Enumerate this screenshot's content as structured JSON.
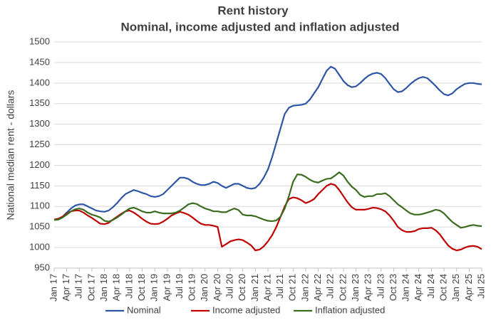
{
  "chart_data": {
    "type": "line",
    "title": "Rent history",
    "subtitle": "Nominal, income adjusted and inflation adjusted",
    "y_label": "National median rent - dollars",
    "categories": [
      "Jan 17",
      null,
      null,
      "Apr 17",
      null,
      null,
      "Jul 17",
      null,
      null,
      "Oct 17",
      null,
      null,
      "Jan 18",
      null,
      null,
      "Apr 18",
      null,
      null,
      "Jul 18",
      null,
      null,
      "Oct 18",
      null,
      null,
      "Jan 19",
      null,
      null,
      "Apr 19",
      null,
      null,
      "Jul 19",
      null,
      null,
      "Oct 19",
      null,
      null,
      "Jan 20",
      null,
      null,
      "Apr 20",
      null,
      null,
      "Jul 20",
      null,
      null,
      "Oct 20",
      null,
      null,
      "Jan 21",
      null,
      null,
      "Apr 21",
      null,
      null,
      "Jul 21",
      null,
      null,
      "Oct 21",
      null,
      null,
      "Jan 22",
      null,
      null,
      "Apr 22",
      null,
      null,
      "Jul 22",
      null,
      null,
      "Oct 22",
      null,
      null,
      "Jan 23",
      null,
      null,
      "Apr 23",
      null,
      null,
      "Jul 23",
      null,
      null,
      "Oct 23",
      null,
      null,
      "Jan 24",
      null,
      null,
      "Apr 24",
      null,
      null,
      "Jul 24",
      null,
      null,
      "Oct 24",
      null,
      null,
      "Jan 25",
      null,
      null,
      "Apr 25",
      null,
      null,
      "Jul 25"
    ],
    "series": [
      {
        "name": "Nominal",
        "color": "#2e55a5",
        "values": [
          1068,
          1070,
          1075,
          1085,
          1095,
          1102,
          1105,
          1105,
          1100,
          1095,
          1090,
          1088,
          1087,
          1090,
          1098,
          1108,
          1120,
          1130,
          1135,
          1140,
          1137,
          1133,
          1130,
          1125,
          1123,
          1125,
          1130,
          1140,
          1150,
          1160,
          1170,
          1170,
          1167,
          1160,
          1155,
          1152,
          1152,
          1155,
          1160,
          1157,
          1150,
          1145,
          1150,
          1155,
          1155,
          1150,
          1145,
          1143,
          1145,
          1155,
          1170,
          1190,
          1220,
          1255,
          1290,
          1325,
          1340,
          1345,
          1346,
          1347,
          1350,
          1360,
          1375,
          1390,
          1410,
          1430,
          1440,
          1435,
          1420,
          1405,
          1395,
          1390,
          1392,
          1400,
          1410,
          1418,
          1423,
          1425,
          1422,
          1412,
          1398,
          1385,
          1378,
          1380,
          1388,
          1398,
          1406,
          1412,
          1415,
          1412,
          1403,
          1393,
          1382,
          1373,
          1370,
          1375,
          1385,
          1392,
          1398,
          1400,
          1400,
          1398,
          1397
        ]
      },
      {
        "name": "Income adjusted",
        "color": "#c00000",
        "values": [
          1068,
          1070,
          1075,
          1082,
          1088,
          1090,
          1090,
          1085,
          1078,
          1072,
          1065,
          1058,
          1057,
          1060,
          1068,
          1075,
          1082,
          1088,
          1090,
          1085,
          1078,
          1070,
          1063,
          1058,
          1057,
          1058,
          1063,
          1070,
          1078,
          1083,
          1087,
          1084,
          1080,
          1073,
          1065,
          1058,
          1055,
          1055,
          1053,
          1050,
          1002,
          1008,
          1015,
          1018,
          1020,
          1018,
          1012,
          1005,
          993,
          995,
          1003,
          1015,
          1030,
          1050,
          1075,
          1100,
          1118,
          1122,
          1120,
          1115,
          1108,
          1112,
          1118,
          1130,
          1140,
          1150,
          1155,
          1152,
          1140,
          1125,
          1110,
          1098,
          1092,
          1092,
          1092,
          1094,
          1097,
          1096,
          1093,
          1088,
          1078,
          1065,
          1050,
          1042,
          1038,
          1038,
          1040,
          1045,
          1047,
          1047,
          1048,
          1042,
          1032,
          1018,
          1005,
          997,
          993,
          995,
          1000,
          1003,
          1004,
          1002,
          996
        ]
      },
      {
        "name": "Inflation adjusted",
        "color": "#3a6b1e",
        "values": [
          1067,
          1068,
          1073,
          1080,
          1088,
          1093,
          1095,
          1092,
          1085,
          1080,
          1077,
          1073,
          1065,
          1063,
          1067,
          1073,
          1080,
          1088,
          1095,
          1097,
          1093,
          1088,
          1085,
          1085,
          1088,
          1085,
          1083,
          1083,
          1083,
          1085,
          1090,
          1097,
          1105,
          1108,
          1106,
          1100,
          1095,
          1092,
          1088,
          1088,
          1086,
          1086,
          1091,
          1095,
          1091,
          1080,
          1078,
          1078,
          1076,
          1072,
          1068,
          1065,
          1064,
          1066,
          1075,
          1095,
          1125,
          1160,
          1178,
          1177,
          1172,
          1165,
          1160,
          1158,
          1163,
          1167,
          1168,
          1175,
          1183,
          1175,
          1160,
          1148,
          1140,
          1128,
          1123,
          1125,
          1125,
          1130,
          1130,
          1132,
          1125,
          1115,
          1105,
          1098,
          1090,
          1083,
          1080,
          1080,
          1082,
          1085,
          1088,
          1092,
          1090,
          1083,
          1072,
          1062,
          1055,
          1048,
          1050,
          1053,
          1055,
          1053,
          1052
        ]
      }
    ],
    "ylim": [
      950,
      1500
    ],
    "yticks": [
      950,
      1000,
      1050,
      1100,
      1150,
      1200,
      1250,
      1300,
      1350,
      1400,
      1450,
      1500
    ],
    "grid": true,
    "legend": "bottom"
  }
}
